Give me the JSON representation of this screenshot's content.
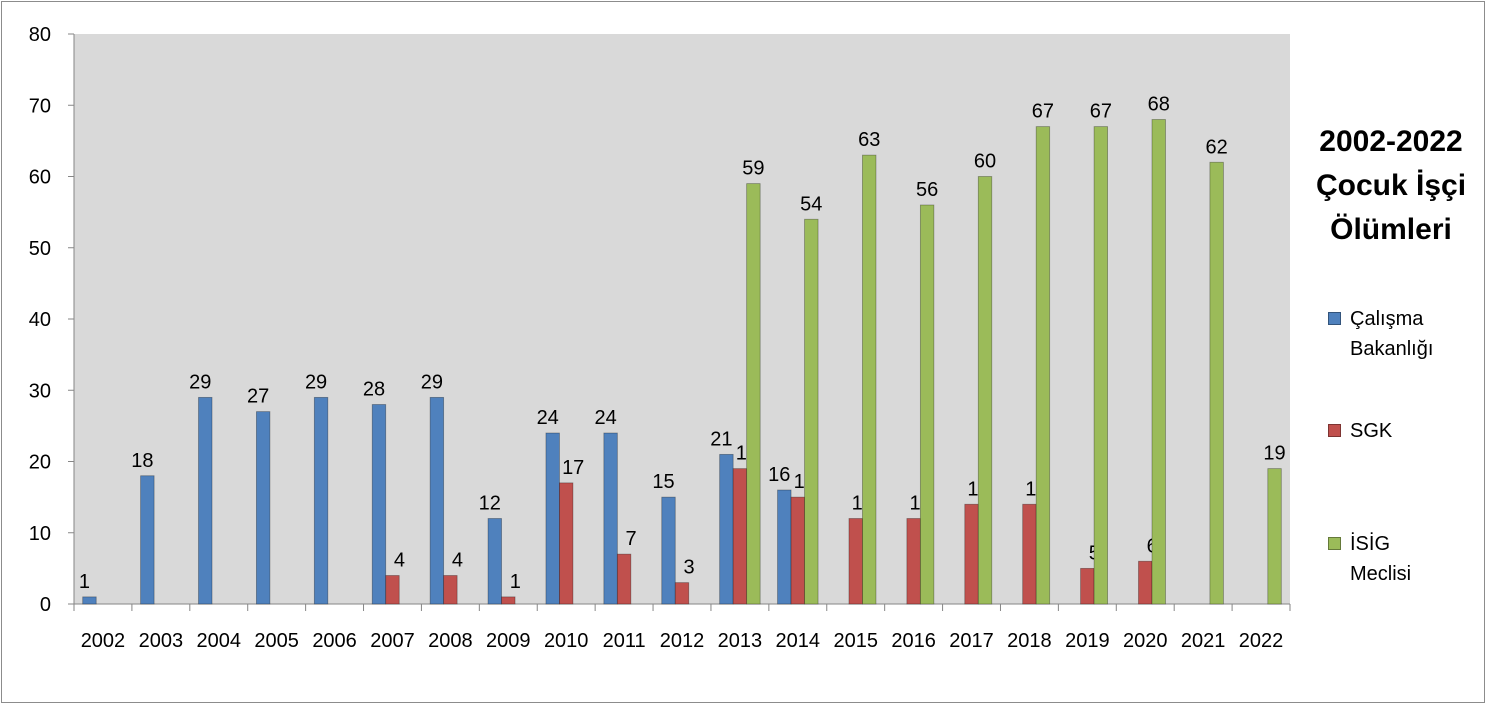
{
  "chart_data": {
    "type": "bar",
    "title": "2002-2022 Çocuk İşçi Ölümleri",
    "title_lines": [
      "2002-2022",
      "Çocuk İşçi",
      "Ölümleri"
    ],
    "categories": [
      "2002",
      "2003",
      "2004",
      "2005",
      "2006",
      "2007",
      "2008",
      "2009",
      "2010",
      "2011",
      "2012",
      "2013",
      "2014",
      "2015",
      "2016",
      "2017",
      "2018",
      "2019",
      "2020",
      "2021",
      "2022"
    ],
    "ylim": [
      0,
      80
    ],
    "yticks": [
      0,
      10,
      20,
      30,
      40,
      50,
      60,
      70,
      80
    ],
    "grid": false,
    "legend_position": "right",
    "plot_background": "#d9d9d9",
    "series": [
      {
        "name": "Çalışma Bakanlığı",
        "legend_lines": [
          "Çalışma",
          "Bakanlığı"
        ],
        "color": "#4f81bd",
        "values": [
          1,
          18,
          29,
          27,
          29,
          28,
          29,
          12,
          24,
          24,
          15,
          21,
          16,
          null,
          null,
          null,
          null,
          null,
          null,
          null,
          null
        ]
      },
      {
        "name": "SGK",
        "legend_lines": [
          "SGK"
        ],
        "color": "#c0504d",
        "values": [
          null,
          null,
          null,
          null,
          null,
          4,
          4,
          1,
          17,
          7,
          3,
          19,
          15,
          12,
          12,
          14,
          14,
          5,
          6,
          null,
          null
        ]
      },
      {
        "name": "İSİG Meclisi",
        "legend_lines": [
          "İSİG",
          "Meclisi"
        ],
        "color": "#9bbb59",
        "values": [
          null,
          null,
          null,
          null,
          null,
          null,
          null,
          null,
          null,
          null,
          null,
          59,
          54,
          63,
          56,
          60,
          67,
          67,
          68,
          62,
          19
        ]
      }
    ]
  }
}
